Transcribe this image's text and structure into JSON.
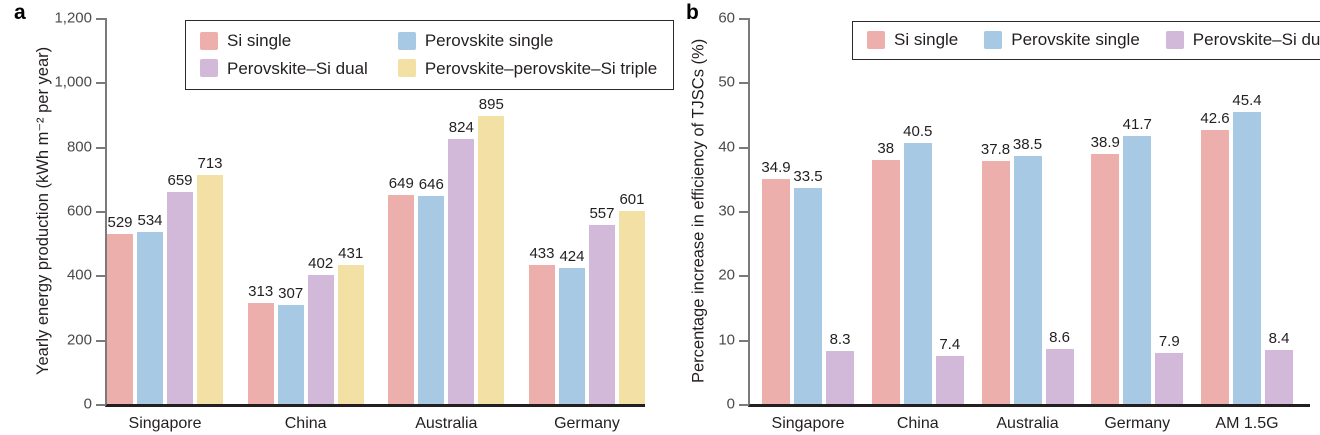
{
  "figure": {
    "background": "#ffffff",
    "text_color": "#231F20",
    "axis_line_color": "#7a7a7a",
    "baseline_color": "#231F20",
    "tick_label_color": "#4a4a4a"
  },
  "chart_data": [
    {
      "type": "bar",
      "panel_label": "a",
      "title": "",
      "xlabel": "",
      "ylabel": "Yearly energy production (kWh m⁻² per year)",
      "ylim": [
        0,
        1200
      ],
      "yticks": [
        0,
        200,
        400,
        600,
        800,
        1000,
        1200
      ],
      "ytick_labels": [
        "0",
        "200",
        "400",
        "600",
        "800",
        "1,000",
        "1,200"
      ],
      "categories": [
        "Singapore",
        "China",
        "Australia",
        "Germany"
      ],
      "series": [
        {
          "name": "Si single",
          "color": "#ECAFAC",
          "values": [
            529,
            313,
            649,
            433
          ]
        },
        {
          "name": "Perovskite single",
          "color": "#A7C9E4",
          "values": [
            534,
            307,
            646,
            424
          ]
        },
        {
          "name": "Perovskite–Si dual",
          "color": "#D2B9DA",
          "values": [
            659,
            402,
            824,
            557
          ]
        },
        {
          "name": "Perovskite–perovskite–Si triple",
          "color": "#F2E0A4",
          "values": [
            713,
            431,
            895,
            601
          ]
        }
      ],
      "legend": {
        "position": "top-inside",
        "rows": [
          [
            0,
            1
          ],
          [
            2,
            3
          ]
        ]
      },
      "grid": false,
      "value_labels_shown": true
    },
    {
      "type": "bar",
      "panel_label": "b",
      "title": "",
      "xlabel": "",
      "ylabel": "Percentage increase in efficiency of TJSCs (%)",
      "ylim": [
        0,
        60
      ],
      "yticks": [
        0,
        10,
        20,
        30,
        40,
        50,
        60
      ],
      "ytick_labels": [
        "0",
        "10",
        "20",
        "30",
        "40",
        "50",
        "60"
      ],
      "categories": [
        "Singapore",
        "China",
        "Australia",
        "Germany",
        "AM 1.5G"
      ],
      "series": [
        {
          "name": "Si single",
          "color": "#ECAFAC",
          "values": [
            34.9,
            38,
            37.8,
            38.9,
            42.6
          ]
        },
        {
          "name": "Perovskite single",
          "color": "#A7C9E4",
          "values": [
            33.5,
            40.5,
            38.5,
            41.7,
            45.4
          ]
        },
        {
          "name": "Perovskite–Si dual",
          "color": "#D2B9DA",
          "values": [
            8.3,
            7.4,
            8.6,
            7.9,
            8.4
          ]
        }
      ],
      "legend": {
        "position": "top-inside",
        "rows": [
          [
            0,
            1,
            2
          ]
        ]
      },
      "grid": false,
      "value_labels_shown": true
    }
  ]
}
